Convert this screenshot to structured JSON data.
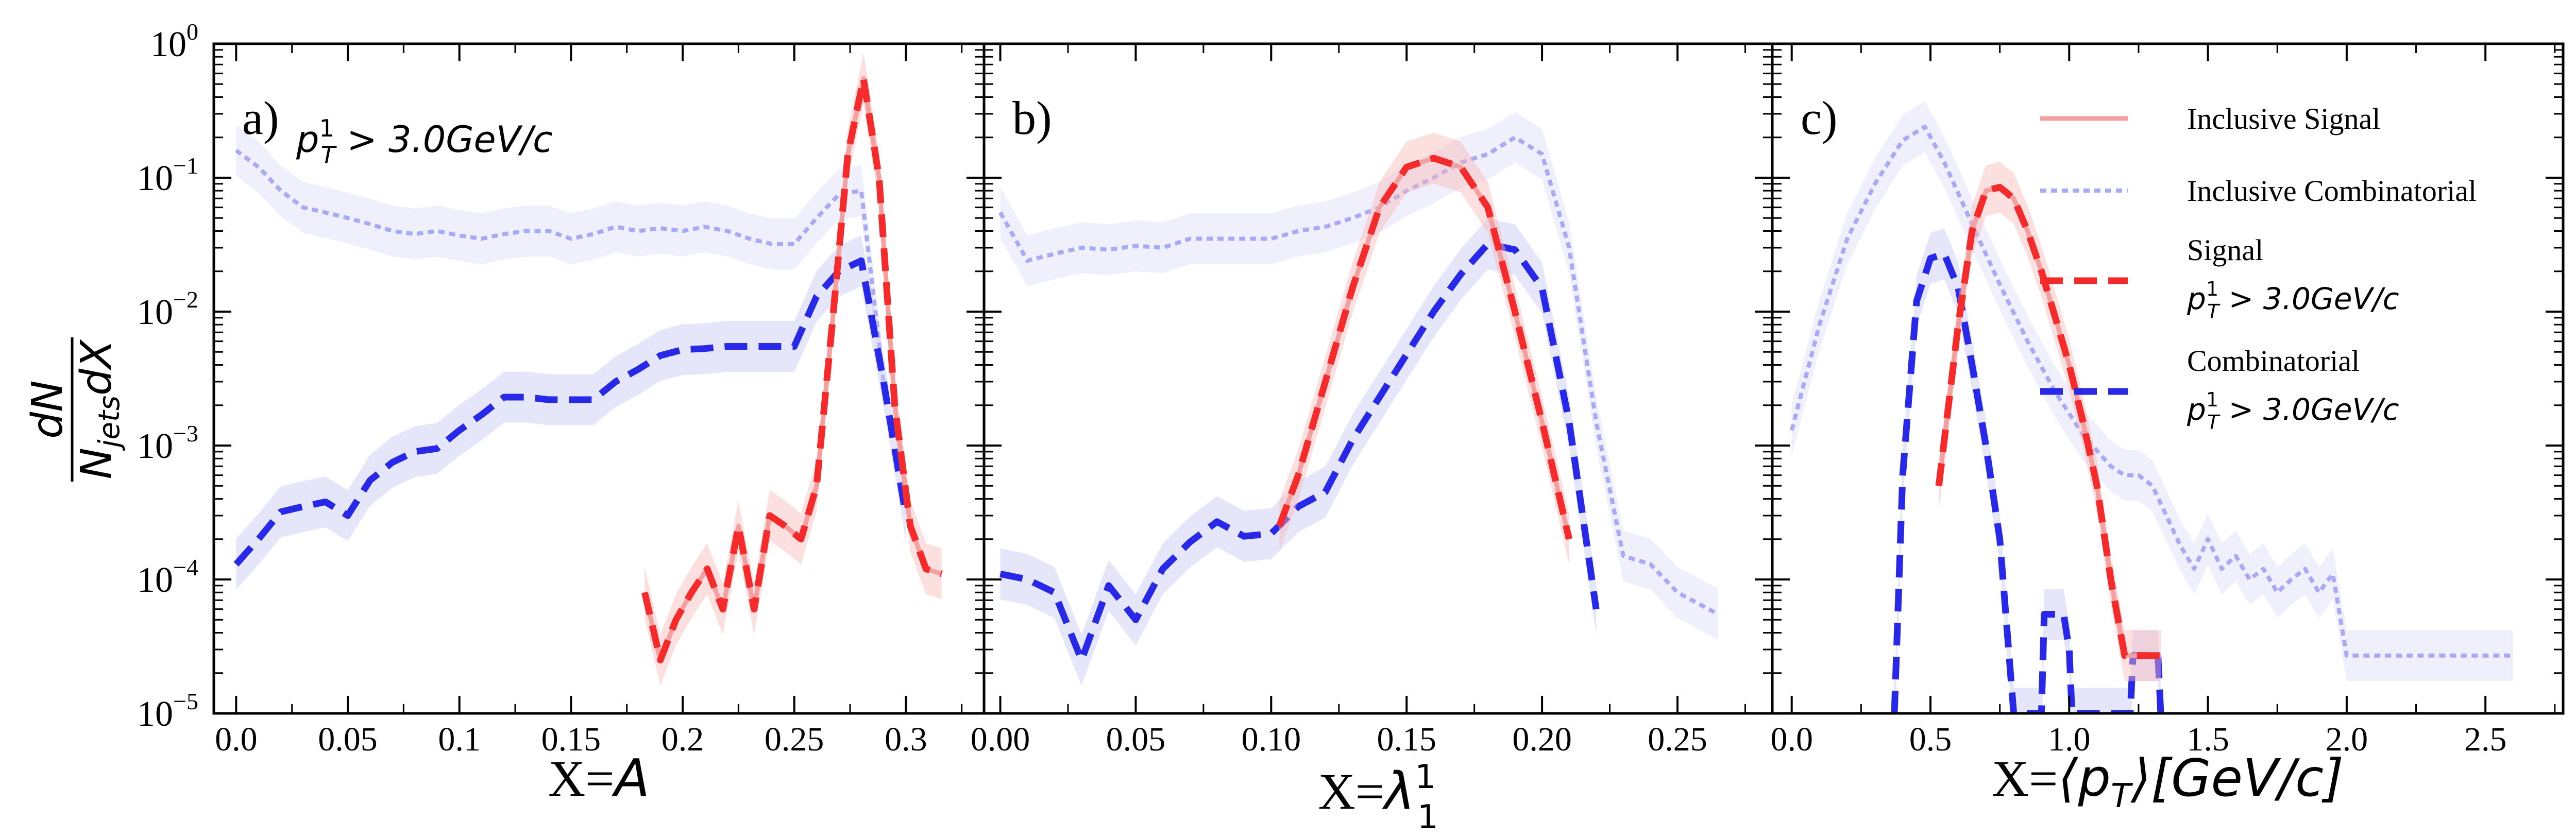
{
  "figure": {
    "ylabel_num": "dN",
    "ylabel_den_n": "N",
    "ylabel_den_sub": "jets",
    "ylabel_den_tail": "dX",
    "y_ticks": [
      {
        "base": "10",
        "exp": "−5"
      },
      {
        "base": "10",
        "exp": "−4"
      },
      {
        "base": "10",
        "exp": "−3"
      },
      {
        "base": "10",
        "exp": "−2"
      },
      {
        "base": "10",
        "exp": "−1"
      },
      {
        "base": "10",
        "exp": "0"
      }
    ],
    "cut_label": {
      "p": "p",
      "sup": "1",
      "sub": "T",
      "rest": " > 3.0GeV/c"
    }
  },
  "colors": {
    "inclusive_signal": "#f4a0a0",
    "inclusive_combinatorial": "#a9a9f5",
    "signal": "#f52a2a",
    "combinatorial": "#2828e8",
    "band_red": "#f8b8b8",
    "band_blue": "#c8c8f4"
  },
  "chart_data": [
    {
      "type": "line",
      "panel_label": "a)",
      "xlabel_prefix": "X=",
      "xlabel_symbol": "A",
      "xlim": [
        -0.01,
        0.335
      ],
      "ylim": [
        1e-05,
        1
      ],
      "yscale": "log",
      "x_ticks": [
        "0.0",
        "0.05",
        "0.1",
        "0.15",
        "0.2",
        "0.25",
        "0.3"
      ],
      "x_tick_values": [
        0,
        0.05,
        0.1,
        0.15,
        0.2,
        0.25,
        0.3
      ],
      "series": [
        {
          "name": "Inclusive Combinatorial",
          "style": "dotted",
          "x": [
            0,
            0.01,
            0.02,
            0.03,
            0.04,
            0.05,
            0.06,
            0.07,
            0.08,
            0.09,
            0.1,
            0.11,
            0.12,
            0.13,
            0.14,
            0.15,
            0.16,
            0.17,
            0.18,
            0.19,
            0.2,
            0.21,
            0.22,
            0.23,
            0.24,
            0.25,
            0.26,
            0.27,
            0.28,
            0.29
          ],
          "y": [
            0.16,
            0.12,
            0.08,
            0.06,
            0.055,
            0.05,
            0.045,
            0.04,
            0.038,
            0.04,
            0.037,
            0.035,
            0.038,
            0.04,
            0.04,
            0.035,
            0.038,
            0.043,
            0.04,
            0.042,
            0.04,
            0.043,
            0.04,
            0.035,
            0.032,
            0.032,
            0.05,
            0.075,
            0.08,
            0.003
          ]
        },
        {
          "name": "Combinatorial p_T^1 > 3.0GeV/c",
          "style": "dashed",
          "x": [
            0,
            0.01,
            0.02,
            0.03,
            0.04,
            0.05,
            0.06,
            0.07,
            0.08,
            0.09,
            0.1,
            0.11,
            0.12,
            0.13,
            0.14,
            0.15,
            0.16,
            0.17,
            0.18,
            0.19,
            0.2,
            0.21,
            0.22,
            0.23,
            0.24,
            0.25,
            0.26,
            0.27,
            0.28,
            0.29,
            0.3
          ],
          "y": [
            0.00013,
            0.0002,
            0.00032,
            0.00035,
            0.00038,
            0.0003,
            0.00055,
            0.00075,
            0.0009,
            0.00095,
            0.0013,
            0.0017,
            0.0023,
            0.0023,
            0.0022,
            0.0022,
            0.0022,
            0.003,
            0.0037,
            0.0047,
            0.0052,
            0.0053,
            0.0055,
            0.0055,
            0.0055,
            0.0055,
            0.013,
            0.02,
            0.024,
            0.003,
            0.0003
          ]
        },
        {
          "name": "Inclusive Signal",
          "style": "solid",
          "x": [
            0.183,
            0.19,
            0.197,
            0.204,
            0.211,
            0.218,
            0.225,
            0.232,
            0.239,
            0.246,
            0.253,
            0.26,
            0.267,
            0.274,
            0.281,
            0.288,
            0.295,
            0.302,
            0.309,
            0.316
          ],
          "y": [
            8e-05,
            2.5e-05,
            5e-05,
            8e-05,
            0.00012,
            6e-05,
            0.00025,
            6e-05,
            0.0003,
            0.00025,
            0.0002,
            0.0005,
            0.008,
            0.15,
            0.55,
            0.1,
            0.002,
            0.00025,
            0.00012,
            0.00011
          ]
        },
        {
          "name": "Signal p_T^1 > 3.0GeV/c",
          "style": "dashed",
          "x": [
            0.183,
            0.19,
            0.197,
            0.204,
            0.211,
            0.218,
            0.225,
            0.232,
            0.239,
            0.246,
            0.253,
            0.26,
            0.267,
            0.274,
            0.281,
            0.288,
            0.295,
            0.302,
            0.309,
            0.316
          ],
          "y": [
            8e-05,
            2.5e-05,
            5e-05,
            8e-05,
            0.00012,
            6e-05,
            0.00025,
            6e-05,
            0.0003,
            0.00025,
            0.0002,
            0.0005,
            0.008,
            0.15,
            0.55,
            0.1,
            0.002,
            0.00025,
            0.00012,
            0.00011
          ]
        }
      ]
    },
    {
      "type": "line",
      "panel_label": "b)",
      "xlabel_prefix": "X=",
      "xlabel_symbol": "λ",
      "xlabel_sup": "1",
      "xlabel_sub": "1",
      "xlim": [
        -0.006,
        0.285
      ],
      "ylim": [
        1e-05,
        1
      ],
      "yscale": "log",
      "x_ticks": [
        "0.00",
        "0.05",
        "0.10",
        "0.15",
        "0.20",
        "0.25"
      ],
      "x_tick_values": [
        0,
        0.05,
        0.1,
        0.15,
        0.2,
        0.25
      ],
      "series": [
        {
          "name": "Inclusive Combinatorial",
          "style": "dotted",
          "x": [
            0,
            0.01,
            0.02,
            0.03,
            0.04,
            0.05,
            0.06,
            0.07,
            0.08,
            0.09,
            0.1,
            0.11,
            0.12,
            0.13,
            0.14,
            0.15,
            0.16,
            0.17,
            0.18,
            0.19,
            0.2,
            0.21,
            0.22,
            0.23,
            0.24,
            0.25,
            0.265
          ],
          "y": [
            0.055,
            0.024,
            0.027,
            0.03,
            0.029,
            0.031,
            0.03,
            0.035,
            0.035,
            0.035,
            0.035,
            0.04,
            0.043,
            0.05,
            0.06,
            0.08,
            0.1,
            0.13,
            0.15,
            0.2,
            0.15,
            0.03,
            0.0015,
            0.00015,
            0.00013,
            8e-05,
            5.5e-05
          ]
        },
        {
          "name": "Combinatorial p_T^1 > 3.0GeV/c",
          "style": "dashed",
          "x": [
            0,
            0.01,
            0.02,
            0.03,
            0.04,
            0.05,
            0.06,
            0.07,
            0.08,
            0.09,
            0.1,
            0.11,
            0.12,
            0.13,
            0.14,
            0.15,
            0.16,
            0.17,
            0.18,
            0.19,
            0.2,
            0.21,
            0.22
          ],
          "y": [
            0.00011,
            0.0001,
            8e-05,
            2.5e-05,
            9e-05,
            5e-05,
            0.00012,
            0.00019,
            0.00027,
            0.00021,
            0.00022,
            0.00035,
            0.00045,
            0.0011,
            0.0023,
            0.0048,
            0.01,
            0.019,
            0.032,
            0.029,
            0.015,
            0.0015,
            6e-05
          ]
        },
        {
          "name": "Inclusive Signal",
          "style": "solid",
          "x": [
            0.103,
            0.11,
            0.12,
            0.13,
            0.14,
            0.15,
            0.16,
            0.17,
            0.18,
            0.19,
            0.2,
            0.21
          ],
          "y": [
            0.00025,
            0.0006,
            0.003,
            0.015,
            0.06,
            0.12,
            0.14,
            0.12,
            0.06,
            0.01,
            0.0015,
            0.0002
          ]
        },
        {
          "name": "Signal p_T^1 > 3.0GeV/c",
          "style": "dashed",
          "x": [
            0.103,
            0.11,
            0.12,
            0.13,
            0.14,
            0.15,
            0.16,
            0.17,
            0.18,
            0.19,
            0.2,
            0.21
          ],
          "y": [
            0.00025,
            0.0006,
            0.003,
            0.015,
            0.06,
            0.12,
            0.14,
            0.12,
            0.06,
            0.01,
            0.0015,
            0.0002
          ]
        }
      ]
    },
    {
      "type": "line",
      "panel_label": "c)",
      "xlabel_prefix": "X=",
      "xlabel_symbol": "⟨p",
      "xlabel_sub": "T",
      "xlabel_tail": "⟩[GeV/c]",
      "xlim": [
        -0.07,
        2.78
      ],
      "ylim": [
        1e-05,
        1
      ],
      "yscale": "log",
      "x_ticks": [
        "0.0",
        "0.5",
        "1.0",
        "1.5",
        "2.0",
        "2.5"
      ],
      "x_tick_values": [
        0,
        0.5,
        1.0,
        1.5,
        2.0,
        2.5
      ],
      "series": [
        {
          "name": "Inclusive Combinatorial",
          "style": "dotted",
          "x": [
            0,
            0.1,
            0.2,
            0.3,
            0.4,
            0.48,
            0.55,
            0.65,
            0.75,
            0.85,
            0.95,
            1.05,
            1.15,
            1.2,
            1.25,
            1.3,
            1.35,
            1.4,
            1.45,
            1.5,
            1.55,
            1.6,
            1.65,
            1.7,
            1.75,
            1.8,
            1.85,
            1.9,
            1.95,
            2.0,
            2.6
          ],
          "y": [
            0.0013,
            0.008,
            0.035,
            0.09,
            0.19,
            0.24,
            0.13,
            0.045,
            0.016,
            0.006,
            0.0025,
            0.0012,
            0.0007,
            0.0006,
            0.0006,
            0.0005,
            0.0003,
            0.00018,
            0.00012,
            0.0002,
            0.00012,
            0.00015,
            0.0001,
            0.00012,
            8e-05,
            0.0001,
            0.00012,
            8e-05,
            0.00011,
            2.7e-05,
            2.7e-05
          ]
        },
        {
          "name": "Combinatorial p_T^1 > 3.0GeV/c",
          "style": "dashed",
          "x": [
            0.37,
            0.4,
            0.45,
            0.5,
            0.55,
            0.6,
            0.65,
            0.7,
            0.75,
            0.8,
            0.9,
            0.91,
            0.93,
            0.98,
            1.0,
            1.01,
            1.22,
            1.23,
            1.25,
            1.32,
            1.33
          ],
          "y": [
            1e-05,
            0.0006,
            0.012,
            0.025,
            0.027,
            0.015,
            0.004,
            0.001,
            0.0002,
            1e-05,
            1e-05,
            5.5e-05,
            5.5e-05,
            5.5e-05,
            3e-05,
            1e-05,
            1e-05,
            2.7e-05,
            2.7e-05,
            2.7e-05,
            1e-05
          ]
        },
        {
          "name": "Inclusive Signal",
          "style": "solid",
          "x": [
            0.53,
            0.6,
            0.65,
            0.7,
            0.75,
            0.8,
            0.85,
            0.9,
            0.95,
            1.0,
            1.05,
            1.1,
            1.15,
            1.2,
            1.25,
            1.3,
            1.33
          ],
          "y": [
            0.0005,
            0.008,
            0.04,
            0.08,
            0.085,
            0.07,
            0.04,
            0.02,
            0.009,
            0.004,
            0.0015,
            0.0005,
            0.0001,
            2.7e-05,
            2.7e-05,
            2.7e-05,
            2.7e-05
          ]
        },
        {
          "name": "Signal p_T^1 > 3.0GeV/c",
          "style": "dashed",
          "x": [
            0.53,
            0.6,
            0.65,
            0.7,
            0.75,
            0.8,
            0.85,
            0.9,
            0.95,
            1.0,
            1.05,
            1.1,
            1.15,
            1.2,
            1.25,
            1.3,
            1.33
          ],
          "y": [
            0.0005,
            0.008,
            0.04,
            0.08,
            0.085,
            0.07,
            0.04,
            0.02,
            0.009,
            0.004,
            0.0015,
            0.0005,
            0.0001,
            2.7e-05,
            2.7e-05,
            2.7e-05,
            2.7e-05
          ]
        }
      ],
      "legend": [
        {
          "style": "solid",
          "color_key": "inclusive_signal",
          "label": "Inclusive Signal"
        },
        {
          "style": "dotted",
          "color_key": "inclusive_combinatorial",
          "label": "Inclusive Combinatorial"
        },
        {
          "style": "dashed",
          "color_key": "signal",
          "label": "Signal",
          "cut": true
        },
        {
          "style": "dashed",
          "color_key": "combinatorial",
          "label": "Combinatorial",
          "cut": true
        }
      ],
      "legend_position": "upper-right"
    }
  ]
}
